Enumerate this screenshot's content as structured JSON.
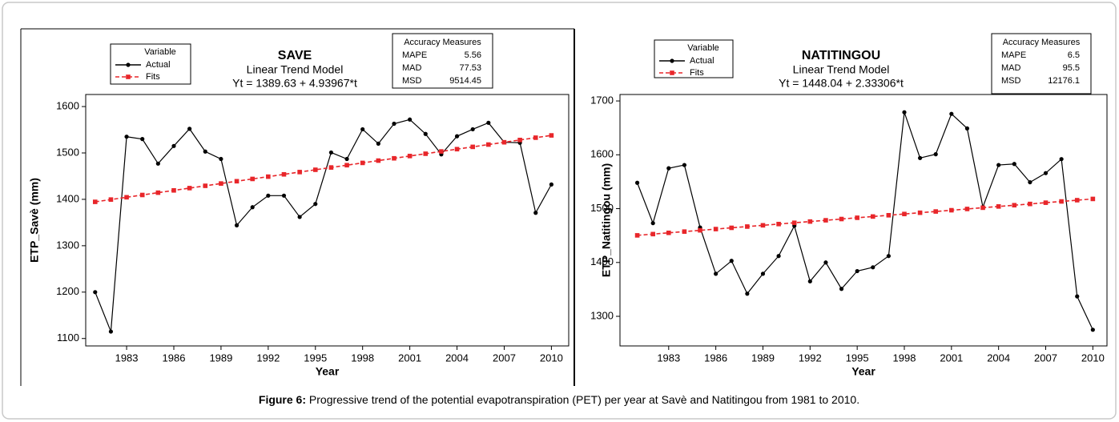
{
  "chart_data": [
    {
      "type": "line",
      "title": "SAVE",
      "subtitle": "Linear Trend Model",
      "equation": "Yt = 1389.63 + 4.93967*t",
      "legend_title": "Variable",
      "xlabel": "Year",
      "ylabel": "ETP_Savè (mm)",
      "x": [
        1981,
        1982,
        1983,
        1984,
        1985,
        1986,
        1987,
        1988,
        1989,
        1990,
        1991,
        1992,
        1993,
        1994,
        1995,
        1996,
        1997,
        1998,
        1999,
        2000,
        2001,
        2002,
        2003,
        2004,
        2005,
        2006,
        2007,
        2008,
        2009,
        2010
      ],
      "series": [
        {
          "name": "Actual",
          "color": "#000000",
          "values": [
            1200,
            1115,
            1535,
            1530,
            1477,
            1515,
            1552,
            1503,
            1487,
            1344,
            1383,
            1408,
            1408,
            1362,
            1390,
            1501,
            1487,
            1551,
            1520,
            1563,
            1572,
            1541,
            1497,
            1536,
            1551,
            1565,
            1523,
            1522,
            1371,
            1432
          ]
        },
        {
          "name": "Fits",
          "color": "#e8262a",
          "values": [
            1394.57,
            1399.51,
            1404.45,
            1409.39,
            1414.33,
            1419.27,
            1424.21,
            1429.15,
            1434.09,
            1439.03,
            1443.97,
            1448.91,
            1453.85,
            1458.79,
            1463.73,
            1468.67,
            1473.61,
            1478.54,
            1483.48,
            1488.42,
            1493.36,
            1498.3,
            1503.24,
            1508.18,
            1513.12,
            1518.06,
            1523,
            1527.94,
            1532.88,
            1537.82
          ]
        }
      ],
      "xlim": [
        1980.4,
        2011.1
      ],
      "xticks": [
        1983,
        1986,
        1989,
        1992,
        1995,
        1998,
        2001,
        2004,
        2007,
        2010
      ],
      "ylim": [
        1084,
        1626
      ],
      "yticks": [
        1100,
        1200,
        1300,
        1400,
        1500,
        1600
      ],
      "accuracy": {
        "title": "Accuracy Measures",
        "labels": [
          "MAPE",
          "MAD",
          "MSD"
        ],
        "values": [
          5.56,
          77.53,
          9514.45
        ]
      }
    },
    {
      "type": "line",
      "title": "NATITINGOU",
      "subtitle": "Linear Trend Model",
      "equation": "Yt = 1448.04 + 2.33306*t",
      "legend_title": "Variable",
      "xlabel": "Year",
      "ylabel": "ETP_Natitingou (mm)",
      "x": [
        1981,
        1982,
        1983,
        1984,
        1985,
        1986,
        1987,
        1988,
        1989,
        1990,
        1991,
        1992,
        1993,
        1994,
        1995,
        1996,
        1997,
        1998,
        1999,
        2000,
        2001,
        2002,
        2003,
        2004,
        2005,
        2006,
        2007,
        2008,
        2009,
        2010
      ],
      "series": [
        {
          "name": "Actual",
          "color": "#000000",
          "values": [
            1548,
            1473,
            1575,
            1581,
            1465,
            1379,
            1403,
            1342,
            1379,
            1412,
            1468,
            1365,
            1400,
            1351,
            1384,
            1391,
            1412,
            1679,
            1594,
            1601,
            1676,
            1649,
            1503,
            1581,
            1583,
            1549,
            1566,
            1592,
            1337,
            1275
          ]
        },
        {
          "name": "Fits",
          "color": "#e8262a",
          "values": [
            1450.37,
            1452.71,
            1455.04,
            1457.37,
            1459.71,
            1462.04,
            1464.37,
            1466.7,
            1469.04,
            1471.37,
            1473.7,
            1476.04,
            1478.37,
            1480.7,
            1483.04,
            1485.37,
            1487.7,
            1490.04,
            1492.37,
            1494.7,
            1497.04,
            1499.37,
            1501.7,
            1504.03,
            1506.37,
            1508.7,
            1511.03,
            1513.37,
            1515.7,
            1518.03
          ]
        }
      ],
      "xlim": [
        1979.9,
        2010.9
      ],
      "xticks": [
        1983,
        1986,
        1989,
        1992,
        1995,
        1998,
        2001,
        2004,
        2007,
        2010
      ],
      "ylim": [
        1245,
        1712
      ],
      "yticks": [
        1300,
        1400,
        1500,
        1600,
        1700
      ],
      "accuracy": {
        "title": "Accuracy Measures",
        "labels": [
          "MAPE",
          "MAD",
          "MSD"
        ],
        "values": [
          6.5,
          95.5,
          12176.1
        ]
      }
    }
  ],
  "caption": {
    "label": "Figure 6:",
    "text": "Progressive trend of the potential evapotranspiration (PET) per year at Savè and Natitingou from 1981 to 2010."
  }
}
